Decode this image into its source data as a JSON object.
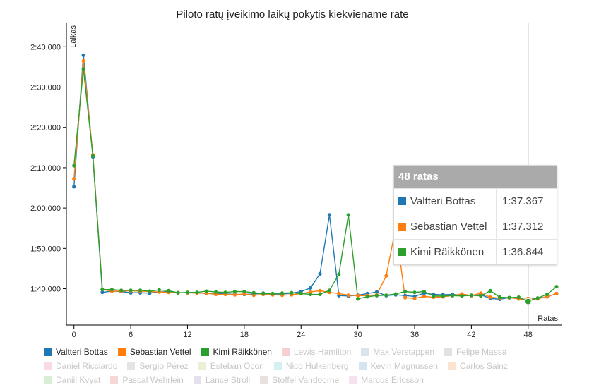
{
  "chart_data": {
    "type": "line",
    "title": "Piloto ratų įveikimo laikų pokytis kiekviename rate",
    "xlabel": "Ratas",
    "ylabel": "Laikas",
    "xlim": [
      -0.8,
      51.6
    ],
    "ylim": [
      91.0,
      166.0
    ],
    "x_ticks": [
      0,
      6,
      12,
      18,
      24,
      30,
      36,
      42,
      48
    ],
    "y_ticks": [
      {
        "value": 100,
        "label": "1:40.000"
      },
      {
        "value": 110,
        "label": "1:50.000"
      },
      {
        "value": 120,
        "label": "2:00.000"
      },
      {
        "value": 130,
        "label": "2:10.000"
      },
      {
        "value": 140,
        "label": "2:20.000"
      },
      {
        "value": 150,
        "label": "2:30.000"
      },
      {
        "value": 160,
        "label": "2:40.000"
      }
    ],
    "grid": false,
    "x": [
      0,
      1,
      2,
      3,
      4,
      5,
      6,
      7,
      8,
      9,
      10,
      11,
      12,
      13,
      14,
      15,
      16,
      17,
      18,
      19,
      20,
      21,
      22,
      23,
      24,
      25,
      26,
      27,
      28,
      29,
      30,
      31,
      32,
      33,
      34,
      35,
      36,
      37,
      38,
      39,
      40,
      41,
      42,
      43,
      44,
      45,
      46,
      47,
      48,
      49,
      50,
      51
    ],
    "series": [
      {
        "name": "Valtteri Bottas",
        "color": "#1f77b4",
        "values": [
          125.3,
          157.9,
          132.7,
          99.1,
          99.4,
          99.3,
          99.0,
          99.0,
          98.9,
          99.2,
          99.3,
          99.0,
          99.0,
          99.0,
          98.8,
          98.8,
          98.7,
          98.6,
          98.6,
          98.7,
          98.9,
          98.6,
          98.7,
          98.9,
          99.3,
          100.2,
          103.7,
          118.3,
          98.3,
          98.2,
          98.4,
          98.8,
          99.2,
          98.3,
          98.5,
          98.3,
          98.1,
          98.9,
          98.6,
          98.5,
          98.6,
          98.4,
          98.3,
          98.5,
          97.6,
          97.4,
          97.8,
          97.5,
          97.367,
          97.6,
          98.0,
          98.8
        ]
      },
      {
        "name": "Sebastian Vettel",
        "color": "#ff7f0e",
        "values": [
          127.2,
          156.5,
          133.2,
          99.8,
          99.4,
          99.4,
          99.5,
          99.4,
          99.3,
          99.2,
          99.1,
          99.0,
          99.0,
          98.9,
          98.9,
          98.6,
          98.6,
          98.5,
          98.7,
          98.4,
          98.6,
          98.5,
          98.4,
          98.5,
          98.8,
          99.2,
          99.5,
          99.1,
          98.8,
          98.4,
          98.3,
          98.3,
          98.5,
          103.2,
          115.1,
          97.8,
          97.6,
          98.1,
          97.9,
          98.0,
          98.3,
          98.7,
          98.3,
          98.9,
          97.9,
          97.7,
          97.8,
          97.5,
          97.312,
          97.5,
          98.0,
          98.8
        ]
      },
      {
        "name": "Kimi Räikkönen",
        "color": "#2ca02c",
        "values": [
          130.5,
          154.5,
          132.9,
          99.8,
          99.8,
          99.6,
          99.6,
          99.6,
          99.4,
          99.7,
          99.5,
          99.0,
          99.1,
          99.1,
          99.4,
          99.2,
          99.1,
          99.3,
          99.3,
          99.0,
          98.8,
          98.8,
          98.9,
          99.0,
          98.8,
          98.6,
          98.6,
          99.6,
          103.6,
          118.3,
          97.5,
          98.0,
          98.3,
          98.4,
          98.7,
          99.3,
          99.1,
          99.3,
          98.2,
          98.2,
          98.3,
          98.2,
          98.4,
          98.2,
          99.5,
          97.9,
          97.8,
          97.9,
          96.844,
          97.7,
          98.6,
          100.5
        ]
      }
    ],
    "hidden_series": [
      "Lewis Hamilton",
      "Max Verstappen",
      "Felipe Massa",
      "Daniel Ricciardo",
      "Sergio Pérez",
      "Esteban Ocon",
      "Nico Hulkenberg",
      "Kevin Magnussen",
      "Carlos Sainz",
      "Daniil Kvyat",
      "Pascal Wehrlein",
      "Lance Stroll",
      "Stoffel Vandoorne",
      "Marcus Ericsson"
    ],
    "highlight_x": 48
  },
  "tooltip": {
    "title": "48 ratas",
    "rows": [
      {
        "name": "Valtteri Bottas",
        "value": "1:37.367",
        "color": "#1f77b4"
      },
      {
        "name": "Sebastian Vettel",
        "value": "1:37.312",
        "color": "#ff7f0e"
      },
      {
        "name": "Kimi Räikkönen",
        "value": "1:36.844",
        "color": "#2ca02c"
      }
    ]
  },
  "legend": {
    "rows": [
      [
        {
          "label": "Valtteri Bottas",
          "color": "#1f77b4",
          "active": true
        },
        {
          "label": "Sebastian Vettel",
          "color": "#ff7f0e",
          "active": true
        },
        {
          "label": "Kimi Räikkönen",
          "color": "#2ca02c",
          "active": true
        },
        {
          "label": "Lewis Hamilton",
          "color": "#f6cfd0",
          "active": false
        },
        {
          "label": "Max Verstappen",
          "color": "#dde3ee",
          "active": false
        },
        {
          "label": "Felipe Massa",
          "color": "#e2e2e2",
          "active": false
        }
      ],
      [
        {
          "label": "Daniel Ricciardo",
          "color": "#f8dbe6",
          "active": false
        },
        {
          "label": "Sergio Pérez",
          "color": "#e4e4e4",
          "active": false
        },
        {
          "label": "Esteban Ocon",
          "color": "#eef0d6",
          "active": false
        },
        {
          "label": "Nico Hulkenberg",
          "color": "#d4f0f2",
          "active": false
        },
        {
          "label": "Kevin Magnussen",
          "color": "#d6e4f1",
          "active": false
        },
        {
          "label": "Carlos Sainz",
          "color": "#fbe3cf",
          "active": false
        }
      ],
      [
        {
          "label": "Daniil Kvyat",
          "color": "#d8efd6",
          "active": false
        },
        {
          "label": "Pascal Wehrlein",
          "color": "#f6d6d6",
          "active": false
        },
        {
          "label": "Lance Stroll",
          "color": "#e6e0ee",
          "active": false
        },
        {
          "label": "Stoffel Vandoorne",
          "color": "#e8e1df",
          "active": false
        },
        {
          "label": "Marcus Ericsson",
          "color": "#f8e1ee",
          "active": false
        }
      ]
    ]
  }
}
